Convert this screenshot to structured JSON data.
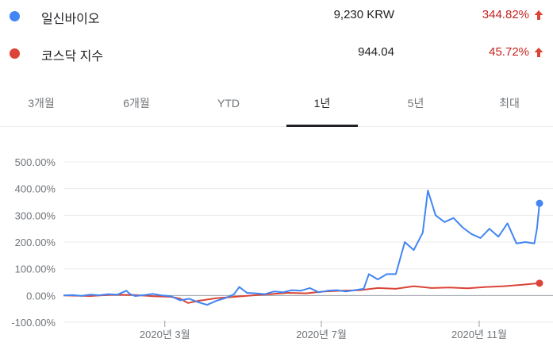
{
  "legend": [
    {
      "name": "일신바이오",
      "price": "9,230 KRW",
      "change": "344.82%",
      "color": "#4285f4"
    },
    {
      "name": "코스닥 지수",
      "price": "944.04",
      "change": "45.72%",
      "color": "#db4437"
    }
  ],
  "up_color": "#db4437",
  "tabs": [
    {
      "label": "3개월",
      "active": false
    },
    {
      "label": "6개월",
      "active": false
    },
    {
      "label": "YTD",
      "active": false
    },
    {
      "label": "1년",
      "active": true
    },
    {
      "label": "5년",
      "active": false
    },
    {
      "label": "최대",
      "active": false
    }
  ],
  "chart_data": {
    "type": "line",
    "y_tick_labels": [
      "500.00%",
      "400.00%",
      "300.00%",
      "200.00%",
      "100.00%",
      "0.00%",
      "-100.00%"
    ],
    "y_ticks": [
      500,
      400,
      300,
      200,
      100,
      0,
      -100
    ],
    "ylim": [
      -100,
      500
    ],
    "x_tick_labels": [
      "2020년 3월",
      "2020년 7월",
      "2020년 11월"
    ],
    "x_ticks": [
      "2020-03-01",
      "2020-07-01",
      "2020-11-01"
    ],
    "xlim": [
      "2019-12-13",
      "2020-12-18"
    ],
    "grid": true,
    "series": [
      {
        "name": "일신바이오",
        "color": "#4285f4",
        "points": [
          [
            "2019-12-13",
            0
          ],
          [
            "2019-12-20",
            2
          ],
          [
            "2019-12-27",
            -1
          ],
          [
            "2020-01-03",
            3
          ],
          [
            "2020-01-10",
            1
          ],
          [
            "2020-01-17",
            5
          ],
          [
            "2020-01-24",
            3
          ],
          [
            "2020-01-31",
            18
          ],
          [
            "2020-02-03",
            5
          ],
          [
            "2020-02-07",
            -2
          ],
          [
            "2020-02-14",
            2
          ],
          [
            "2020-02-21",
            6
          ],
          [
            "2020-02-28",
            0
          ],
          [
            "2020-03-06",
            -3
          ],
          [
            "2020-03-13",
            -18
          ],
          [
            "2020-03-20",
            -12
          ],
          [
            "2020-03-27",
            -25
          ],
          [
            "2020-04-03",
            -35
          ],
          [
            "2020-04-10",
            -20
          ],
          [
            "2020-04-17",
            -10
          ],
          [
            "2020-04-24",
            5
          ],
          [
            "2020-04-28",
            32
          ],
          [
            "2020-05-04",
            10
          ],
          [
            "2020-05-11",
            8
          ],
          [
            "2020-05-18",
            5
          ],
          [
            "2020-05-25",
            15
          ],
          [
            "2020-06-01",
            12
          ],
          [
            "2020-06-08",
            20
          ],
          [
            "2020-06-15",
            18
          ],
          [
            "2020-06-22",
            28
          ],
          [
            "2020-06-29",
            12
          ],
          [
            "2020-07-06",
            18
          ],
          [
            "2020-07-13",
            20
          ],
          [
            "2020-07-20",
            15
          ],
          [
            "2020-07-27",
            20
          ],
          [
            "2020-08-03",
            25
          ],
          [
            "2020-08-07",
            80
          ],
          [
            "2020-08-14",
            60
          ],
          [
            "2020-08-21",
            80
          ],
          [
            "2020-08-28",
            80
          ],
          [
            "2020-09-04",
            200
          ],
          [
            "2020-09-11",
            170
          ],
          [
            "2020-09-18",
            235
          ],
          [
            "2020-09-22",
            393
          ],
          [
            "2020-09-28",
            300
          ],
          [
            "2020-10-05",
            275
          ],
          [
            "2020-10-12",
            290
          ],
          [
            "2020-10-19",
            255
          ],
          [
            "2020-10-26",
            230
          ],
          [
            "2020-11-02",
            215
          ],
          [
            "2020-11-09",
            250
          ],
          [
            "2020-11-16",
            220
          ],
          [
            "2020-11-23",
            270
          ],
          [
            "2020-11-30",
            195
          ],
          [
            "2020-12-07",
            200
          ],
          [
            "2020-12-14",
            195
          ],
          [
            "2020-12-16",
            250
          ],
          [
            "2020-12-18",
            345
          ]
        ]
      },
      {
        "name": "코스닥 지수",
        "color": "#db4437",
        "points": [
          [
            "2019-12-13",
            0
          ],
          [
            "2020-01-03",
            -2
          ],
          [
            "2020-01-20",
            3
          ],
          [
            "2020-02-07",
            2
          ],
          [
            "2020-02-21",
            -3
          ],
          [
            "2020-03-06",
            -5
          ],
          [
            "2020-03-13",
            -12
          ],
          [
            "2020-03-19",
            -28
          ],
          [
            "2020-03-27",
            -20
          ],
          [
            "2020-04-10",
            -10
          ],
          [
            "2020-04-24",
            -5
          ],
          [
            "2020-05-08",
            0
          ],
          [
            "2020-05-22",
            5
          ],
          [
            "2020-06-05",
            10
          ],
          [
            "2020-06-19",
            8
          ],
          [
            "2020-07-03",
            15
          ],
          [
            "2020-07-17",
            18
          ],
          [
            "2020-07-31",
            20
          ],
          [
            "2020-08-14",
            28
          ],
          [
            "2020-08-28",
            25
          ],
          [
            "2020-09-11",
            35
          ],
          [
            "2020-09-25",
            28
          ],
          [
            "2020-10-09",
            30
          ],
          [
            "2020-10-23",
            27
          ],
          [
            "2020-11-06",
            32
          ],
          [
            "2020-11-20",
            35
          ],
          [
            "2020-12-04",
            40
          ],
          [
            "2020-12-18",
            46
          ]
        ]
      }
    ]
  }
}
